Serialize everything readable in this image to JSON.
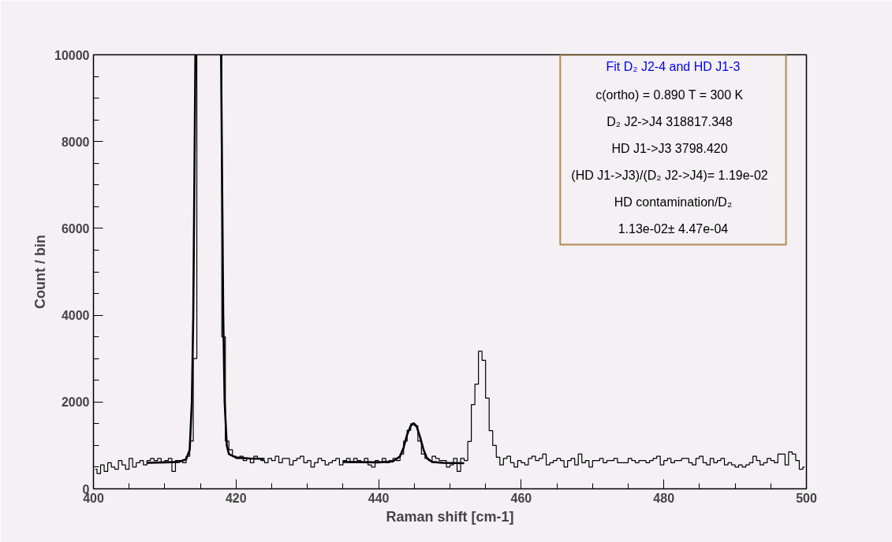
{
  "chart_data": {
    "type": "step",
    "xlabel": "Raman shift [cm-1]",
    "ylabel": "Count / bin",
    "xlim": [
      400,
      500
    ],
    "ylim": [
      0,
      10000
    ],
    "xticks": [
      400,
      420,
      440,
      460,
      480,
      500
    ],
    "yticks": [
      0,
      2000,
      4000,
      6000,
      8000,
      10000
    ],
    "annotations": [
      "Fit D₂ J2-4 and HD J1-3",
      "c(ortho) = 0.890   T = 300 K",
      "D₂ J2->J4   318817.348",
      "HD J1->J3   3798.420",
      "(HD J1->J3)/(D₂ J2->J4)=   1.19e-02",
      "HD contamination/D₂",
      "1.13e-02± 4.47e-04"
    ],
    "series": [
      {
        "color": "#000000",
        "x": [
          400.25,
          400.75,
          401.25,
          401.75,
          402.25,
          402.75,
          403.25,
          403.75,
          404.25,
          404.75,
          405.25,
          405.75,
          406.25,
          406.75,
          407.25,
          407.75,
          408.25,
          408.75,
          409.25,
          409.75,
          410.25,
          410.75,
          411.25,
          411.75,
          412.25,
          412.75,
          413.25,
          413.75,
          414.25,
          414.75,
          415.25,
          415.75,
          416.25,
          416.75,
          417.25,
          417.75,
          418.25,
          418.75,
          419.25,
          419.75,
          420.25,
          420.75,
          421.25,
          421.75,
          422.25,
          422.75,
          423.25,
          423.75,
          424.25,
          424.75,
          425.25,
          425.75,
          426.25,
          426.75,
          427.25,
          427.75,
          428.25,
          428.75,
          429.25,
          429.75,
          430.25,
          430.75,
          431.25,
          431.75,
          432.25,
          432.75,
          433.25,
          433.75,
          434.25,
          434.75,
          435.25,
          435.75,
          436.25,
          436.75,
          437.25,
          437.75,
          438.25,
          438.75,
          439.25,
          439.75,
          440.25,
          440.75,
          441.25,
          441.75,
          442.25,
          442.75,
          443.25,
          443.75,
          444.25,
          444.75,
          445.25,
          445.75,
          446.25,
          446.75,
          447.25,
          447.75,
          448.25,
          448.75,
          449.25,
          449.75,
          450.25,
          450.75,
          451.25,
          451.75,
          452.25,
          452.75,
          453.25,
          453.75,
          454.25,
          454.75,
          455.25,
          455.75,
          456.25,
          456.75,
          457.25,
          457.75,
          458.25,
          458.75,
          459.25,
          459.75,
          460.25,
          460.75,
          461.25,
          461.75,
          462.25,
          462.75,
          463.25,
          463.75,
          464.25,
          464.75,
          465.25,
          465.75,
          466.25,
          466.75,
          467.25,
          467.75,
          468.25,
          468.75,
          469.25,
          469.75,
          470.25,
          470.75,
          471.25,
          471.75,
          472.25,
          472.75,
          473.25,
          473.75,
          474.25,
          474.75,
          475.25,
          475.75,
          476.25,
          476.75,
          477.25,
          477.75,
          478.25,
          478.75,
          479.25,
          479.75,
          480.25,
          480.75,
          481.25,
          481.75,
          482.25,
          482.75,
          483.25,
          483.75,
          484.25,
          484.75,
          485.25,
          485.75,
          486.25,
          486.75,
          487.25,
          487.75,
          488.25,
          488.75,
          489.25,
          489.75,
          490.25,
          490.75,
          491.25,
          491.75,
          492.25,
          492.75,
          493.25,
          493.75,
          494.25,
          494.75,
          495.25,
          495.75,
          496.25,
          496.75,
          497.25,
          497.75,
          498.25,
          498.75,
          499.25,
          499.75
        ],
        "values": [
          450,
          350,
          550,
          400,
          600,
          500,
          450,
          650,
          550,
          450,
          700,
          500,
          600,
          650,
          550,
          650,
          700,
          650,
          700,
          600,
          650,
          700,
          400,
          650,
          650,
          600,
          750,
          1100,
          3000,
          10000,
          10000,
          10000,
          10000,
          10000,
          10000,
          10000,
          3500,
          1100,
          900,
          750,
          700,
          750,
          650,
          700,
          600,
          750,
          700,
          650,
          600,
          700,
          650,
          750,
          600,
          700,
          700,
          550,
          650,
          700,
          750,
          600,
          650,
          500,
          600,
          700,
          650,
          550,
          600,
          650,
          700,
          550,
          650,
          700,
          600,
          700,
          650,
          600,
          700,
          550,
          500,
          650,
          600,
          700,
          600,
          650,
          700,
          650,
          800,
          1100,
          1350,
          1500,
          1450,
          1100,
          800,
          700,
          650,
          750,
          700,
          650,
          650,
          500,
          550,
          700,
          400,
          700,
          650,
          1090,
          1940,
          2410,
          3170,
          2960,
          2090,
          1340,
          1000,
          730,
          550,
          700,
          750,
          600,
          500,
          650,
          600,
          550,
          700,
          750,
          650,
          700,
          800,
          550,
          600,
          650,
          700,
          650,
          500,
          650,
          700,
          550,
          800,
          600,
          650,
          500,
          650,
          650,
          700,
          600,
          650,
          650,
          700,
          600,
          600,
          600,
          700,
          650,
          600,
          650,
          650,
          600,
          650,
          700,
          750,
          550,
          650,
          700,
          600,
          650,
          650,
          700,
          700,
          600,
          550,
          700,
          750,
          600,
          550,
          700,
          600,
          650,
          700,
          550,
          600,
          550,
          500,
          550,
          500,
          550,
          600,
          750,
          650,
          550,
          600,
          700,
          650,
          600,
          800,
          800,
          550,
          850,
          800,
          650,
          450,
          500
        ]
      },
      {
        "type": "line",
        "color": "#000000",
        "x": [
          407.5,
          410,
          412,
          413,
          413.5,
          413.8,
          414,
          414.2,
          414.3,
          416,
          417.9,
          418,
          418.2,
          418.4,
          418.7,
          419,
          420,
          422,
          424
        ],
        "values": [
          600,
          610,
          620,
          680,
          900,
          2000,
          4000,
          8000,
          10000,
          null,
          10000,
          8000,
          4000,
          2000,
          1000,
          800,
          720,
          700,
          690
        ]
      },
      {
        "type": "line",
        "color": "#000000",
        "x": [
          435,
          440,
          442,
          443,
          443.5,
          444,
          444.5,
          444.9,
          445.3,
          445.8,
          446.3,
          446.8,
          447.5,
          449,
          452
        ],
        "values": [
          620,
          610,
          630,
          750,
          950,
          1250,
          1450,
          1510,
          1450,
          1200,
          900,
          700,
          620,
          600,
          590
        ]
      }
    ]
  }
}
